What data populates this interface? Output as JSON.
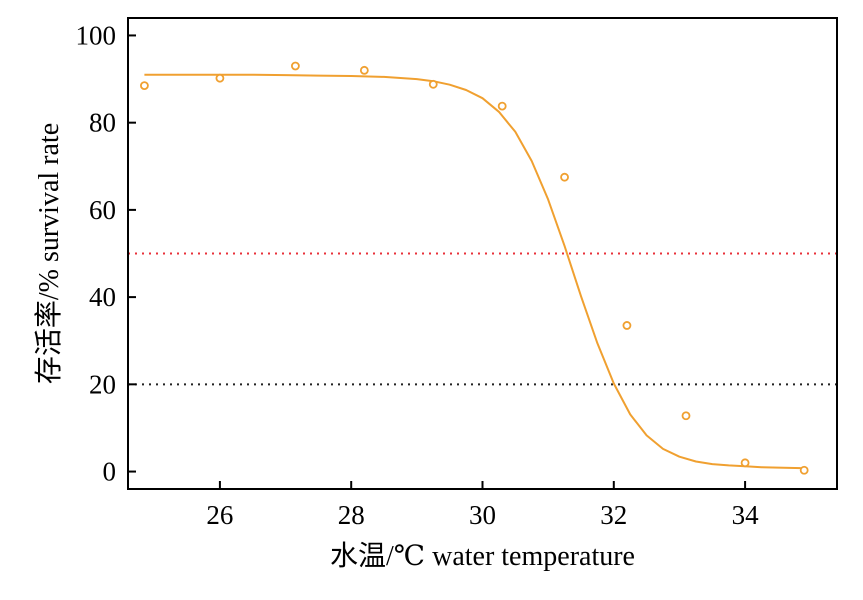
{
  "chart_data": {
    "type": "scatter",
    "xlabel": "水温/℃ water temperature",
    "ylabel": "存活率/% survival rate",
    "xlim": [
      24.6,
      35.4
    ],
    "ylim": [
      -4,
      104
    ],
    "xticks": [
      26,
      28,
      30,
      32,
      34
    ],
    "yticks": [
      0,
      20,
      40,
      60,
      80,
      100
    ],
    "tick_direction": "in",
    "grid": false,
    "legend": "none",
    "series": [
      {
        "kind": "points",
        "marker": "open-circle",
        "color": "#F0A030",
        "x": [
          24.85,
          26.0,
          27.15,
          28.2,
          29.25,
          30.3,
          31.25,
          32.2,
          33.1,
          34.0,
          34.9
        ],
        "y": [
          88.5,
          90.2,
          93.0,
          92.0,
          88.8,
          83.8,
          67.5,
          33.5,
          12.8,
          2.0,
          0.3
        ]
      },
      {
        "kind": "fitted-curve",
        "color": "#F0A030",
        "x": [
          24.85,
          25.5,
          26.0,
          26.5,
          27.0,
          27.5,
          28.0,
          28.5,
          29.0,
          29.25,
          29.5,
          29.75,
          30.0,
          30.25,
          30.5,
          30.75,
          31.0,
          31.25,
          31.5,
          31.75,
          32.0,
          32.25,
          32.5,
          32.75,
          33.0,
          33.25,
          33.5,
          33.75,
          34.0,
          34.25,
          34.5,
          34.85
        ],
        "y": [
          91.0,
          91.0,
          91.0,
          91.0,
          90.9,
          90.8,
          90.7,
          90.5,
          90.0,
          89.5,
          88.7,
          87.5,
          85.6,
          82.5,
          77.9,
          71.2,
          62.4,
          51.7,
          40.2,
          29.4,
          20.2,
          13.1,
          8.3,
          5.2,
          3.4,
          2.3,
          1.7,
          1.4,
          1.2,
          1.0,
          0.9,
          0.8
        ]
      }
    ],
    "reference_lines": [
      {
        "y": 50,
        "color": "#E8303A",
        "style": "dotted"
      },
      {
        "y": 20,
        "color": "#222222",
        "style": "dotted"
      }
    ]
  }
}
